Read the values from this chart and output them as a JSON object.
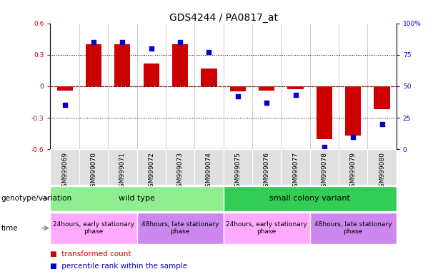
{
  "title": "GDS4244 / PA0817_at",
  "samples": [
    "GSM999069",
    "GSM999070",
    "GSM999071",
    "GSM999072",
    "GSM999073",
    "GSM999074",
    "GSM999075",
    "GSM999076",
    "GSM999077",
    "GSM999078",
    "GSM999079",
    "GSM999080"
  ],
  "bar_values": [
    -0.04,
    0.4,
    0.4,
    0.22,
    0.4,
    0.17,
    -0.05,
    -0.04,
    -0.03,
    -0.5,
    -0.47,
    -0.22
  ],
  "dot_values": [
    35,
    85,
    85,
    80,
    85,
    77,
    42,
    37,
    43,
    2,
    10,
    20
  ],
  "bar_color": "#cc0000",
  "dot_color": "#0000cc",
  "ylim_left": [
    -0.6,
    0.6
  ],
  "ylim_right": [
    0,
    100
  ],
  "yticks_left": [
    -0.6,
    -0.3,
    0.0,
    0.3,
    0.6
  ],
  "ytick_labels_left": [
    "-0.6",
    "-0.3",
    "0",
    "0.3",
    "0.6"
  ],
  "yticks_right": [
    0,
    25,
    50,
    75,
    100
  ],
  "ytick_labels_right": [
    "0",
    "25",
    "50",
    "75",
    "100%"
  ],
  "hline_color": "#cc0000",
  "dotted_line_color": "black",
  "genotype_groups": [
    {
      "label": "wild type",
      "start": 0,
      "end": 6,
      "color": "#90ee90"
    },
    {
      "label": "small colony variant",
      "start": 6,
      "end": 12,
      "color": "#33cc55"
    }
  ],
  "time_groups": [
    {
      "label": "24hours, early stationary\nphase",
      "start": 0,
      "end": 3,
      "color": "#ffaaff"
    },
    {
      "label": "48hours, late stationary\nphase",
      "start": 3,
      "end": 6,
      "color": "#cc88ee"
    },
    {
      "label": "24hours, early stationary\nphase",
      "start": 6,
      "end": 9,
      "color": "#ffaaff"
    },
    {
      "label": "48hours, late stationary\nphase",
      "start": 9,
      "end": 12,
      "color": "#cc88ee"
    }
  ],
  "legend_items": [
    {
      "label": "transformed count",
      "color": "#cc0000"
    },
    {
      "label": "percentile rank within the sample",
      "color": "#0000cc"
    }
  ],
  "row_label_genotype": "genotype/variation",
  "row_label_time": "time",
  "bar_width": 0.55,
  "tick_label_fontsize": 6.5,
  "title_fontsize": 10,
  "legend_fontsize": 7.5,
  "row_label_fontsize": 7.5
}
